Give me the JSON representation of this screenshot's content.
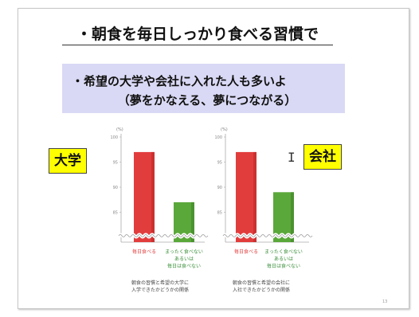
{
  "slide": {
    "title": "・朝食を毎日しっかり食べる習慣で",
    "banner_line1": "・希望の大学や会社に入れた人も多いよ",
    "banner_line2": "（夢をかなえる、夢につながる）",
    "tag_left": "大学",
    "tag_right": "会社",
    "cursor_glyph": "I",
    "page_number": "13"
  },
  "colors": {
    "red": "#e23d3d",
    "green": "#5aa83a",
    "banner": "#d9d9f5",
    "tag": "#ffff00"
  },
  "chart_data": [
    {
      "type": "bar",
      "unit_label": "(%)",
      "categories": [
        "毎日食べる",
        "まったく食べない あるいは 毎日は食べない"
      ],
      "category_lines": [
        [
          "毎日食べる"
        ],
        [
          "まったく食べない",
          "あるいは",
          "毎日は食べない"
        ]
      ],
      "values": [
        97,
        87
      ],
      "ylim": [
        80,
        100
      ],
      "yticks": [
        "100",
        "95",
        "90",
        "85"
      ],
      "axis_break": true,
      "caption_lines": [
        "朝食の習慣と希望の大学に",
        "入学できたかどうかの関係"
      ]
    },
    {
      "type": "bar",
      "unit_label": "(%)",
      "categories": [
        "毎日食べる",
        "まったく食べない あるいは 毎日は食べない"
      ],
      "category_lines": [
        [
          "毎日食べる"
        ],
        [
          "まったく食べない",
          "あるいは",
          "毎日は食べない"
        ]
      ],
      "values": [
        97,
        89
      ],
      "ylim": [
        80,
        100
      ],
      "yticks": [
        "100",
        "95",
        "90",
        "85"
      ],
      "axis_break": true,
      "caption_lines": [
        "朝食の習慣と希望の会社に",
        "入社できたかどうかの関係"
      ]
    }
  ]
}
